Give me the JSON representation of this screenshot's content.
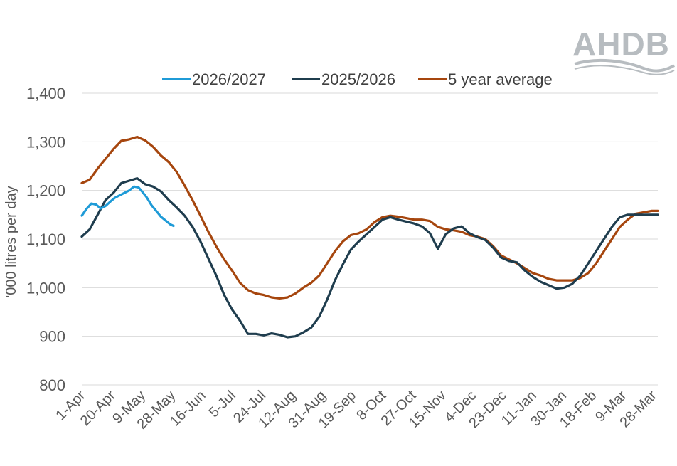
{
  "logo": {
    "text": "AHDB"
  },
  "chart_data": {
    "type": "line",
    "ylabel": "'000 litres per day",
    "ylim": [
      800,
      1400
    ],
    "yticks": [
      800,
      900,
      1000,
      1100,
      1200,
      1300,
      1400
    ],
    "ytick_labels": [
      "800",
      "900",
      "1,000",
      "1,100",
      "1,200",
      "1,300",
      "1,400"
    ],
    "x_ticks": [
      "1-Apr",
      "20-Apr",
      "9-May",
      "28-May",
      "16-Jun",
      "5-Jul",
      "24-Jul",
      "12-Aug",
      "31-Aug",
      "19-Sep",
      "8-Oct",
      "27-Oct",
      "15-Nov",
      "4-Dec",
      "23-Dec",
      "11-Jan",
      "30-Jan",
      "18-Feb",
      "9-Mar",
      "28-Mar"
    ],
    "x_tick_spacing_days": 19,
    "grid": true,
    "legend_position": "top",
    "series": [
      {
        "name": "2026/2027",
        "color": "#1f9bd7",
        "x": [
          0,
          3,
          6,
          9,
          12,
          15,
          18,
          21,
          24,
          27,
          30,
          33,
          36,
          38,
          41,
          44,
          47,
          50,
          53,
          56,
          58
        ],
        "y": [
          1148,
          1162,
          1173,
          1171,
          1163,
          1168,
          1177,
          1185,
          1190,
          1195,
          1200,
          1208,
          1206,
          1198,
          1186,
          1170,
          1158,
          1146,
          1138,
          1130,
          1127
        ]
      },
      {
        "name": "2025/2026",
        "color": "#1f3d4e",
        "x": [
          0,
          5,
          10,
          15,
          20,
          25,
          30,
          35,
          40,
          45,
          50,
          55,
          60,
          65,
          70,
          75,
          80,
          85,
          90,
          95,
          100,
          105,
          110,
          115,
          120,
          125,
          130,
          135,
          140,
          145,
          150,
          155,
          160,
          165,
          170,
          175,
          180,
          185,
          190,
          195,
          200,
          205,
          210,
          215,
          220,
          225,
          230,
          235,
          240,
          245,
          250,
          255,
          260,
          265,
          270,
          275,
          280,
          285,
          290,
          295,
          300,
          305,
          310,
          315,
          320,
          325,
          330,
          335,
          340,
          345,
          350,
          355,
          360,
          364
        ],
        "y": [
          1105,
          1120,
          1150,
          1180,
          1195,
          1215,
          1220,
          1225,
          1213,
          1208,
          1198,
          1180,
          1165,
          1148,
          1125,
          1095,
          1060,
          1025,
          985,
          955,
          932,
          905,
          905,
          902,
          906,
          903,
          898,
          900,
          908,
          918,
          940,
          975,
          1015,
          1048,
          1078,
          1095,
          1110,
          1125,
          1140,
          1145,
          1140,
          1136,
          1132,
          1126,
          1112,
          1080,
          1110,
          1122,
          1126,
          1112,
          1104,
          1098,
          1082,
          1062,
          1055,
          1052,
          1035,
          1022,
          1012,
          1005,
          998,
          1000,
          1008,
          1025,
          1050,
          1075,
          1100,
          1125,
          1145,
          1150,
          1150,
          1150,
          1150,
          1150
        ]
      },
      {
        "name": "5 year average",
        "color": "#a6460e",
        "x": [
          0,
          5,
          10,
          15,
          20,
          25,
          30,
          35,
          40,
          45,
          50,
          55,
          60,
          65,
          70,
          75,
          80,
          85,
          90,
          95,
          100,
          105,
          110,
          115,
          120,
          125,
          130,
          135,
          140,
          145,
          150,
          155,
          160,
          165,
          170,
          175,
          180,
          185,
          190,
          195,
          200,
          205,
          210,
          215,
          220,
          225,
          230,
          235,
          240,
          245,
          250,
          255,
          260,
          265,
          270,
          275,
          280,
          285,
          290,
          295,
          300,
          305,
          310,
          315,
          320,
          325,
          330,
          335,
          340,
          345,
          350,
          355,
          360,
          364
        ],
        "y": [
          1215,
          1222,
          1245,
          1265,
          1285,
          1302,
          1305,
          1310,
          1303,
          1290,
          1272,
          1258,
          1238,
          1210,
          1180,
          1148,
          1115,
          1085,
          1058,
          1035,
          1010,
          995,
          988,
          985,
          980,
          978,
          980,
          988,
          1000,
          1010,
          1025,
          1050,
          1075,
          1095,
          1108,
          1112,
          1120,
          1135,
          1145,
          1148,
          1146,
          1143,
          1140,
          1140,
          1137,
          1125,
          1120,
          1118,
          1115,
          1108,
          1105,
          1100,
          1085,
          1066,
          1058,
          1050,
          1040,
          1030,
          1025,
          1018,
          1015,
          1015,
          1015,
          1020,
          1030,
          1050,
          1075,
          1100,
          1125,
          1140,
          1152,
          1155,
          1158,
          1158
        ]
      }
    ]
  }
}
